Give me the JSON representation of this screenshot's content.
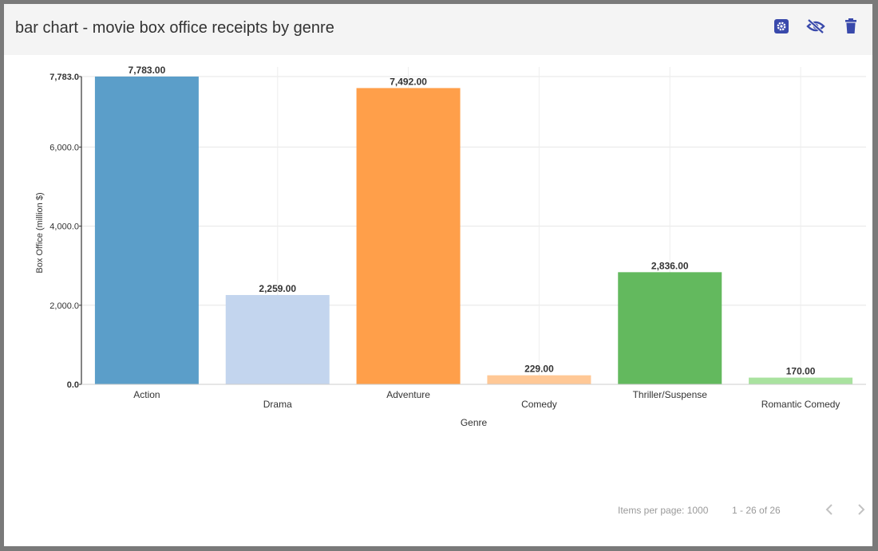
{
  "header": {
    "title": "bar chart - movie box office receipts by genre",
    "icons": [
      "settings-icon",
      "hide-icon",
      "delete-icon"
    ],
    "icon_color": "#3949ab"
  },
  "chart_data": {
    "type": "bar",
    "categories": [
      "Action",
      "Drama",
      "Adventure",
      "Comedy",
      "Thriller/Suspense",
      "Romantic Comedy"
    ],
    "values": [
      7783,
      2259,
      7492,
      229,
      2836,
      170
    ],
    "value_labels": [
      "7,783.00",
      "2,259.00",
      "7,492.00",
      "229.00",
      "2,836.00",
      "170.00"
    ],
    "colors": [
      "#5b9ec9",
      "#c3d5ee",
      "#ff9f4a",
      "#ffc896",
      "#63b95e",
      "#a9e29f"
    ],
    "xlabel": "Genre",
    "ylabel": "Box Office (million $)",
    "ylim": [
      0,
      7783
    ],
    "yticks": [
      0,
      2000,
      4000,
      6000,
      7783
    ],
    "ytick_labels": [
      "0.0",
      "2,000.0",
      "4,000.0",
      "6,000.0",
      "7,783.0"
    ],
    "grid": true
  },
  "footer": {
    "items_per_page": "Items per page: 1000",
    "range": "1 - 26 of 26"
  }
}
